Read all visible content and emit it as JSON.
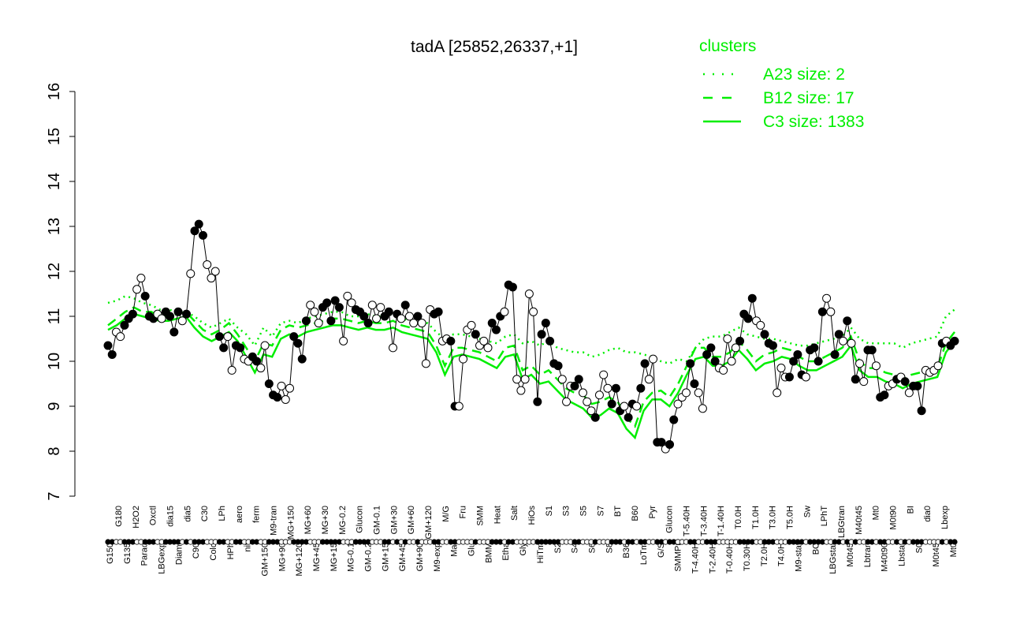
{
  "chart_data": {
    "type": "line",
    "title": "tadA [25852,26337,+1]",
    "ylim": [
      7,
      16
    ],
    "yticks": [
      "7",
      "8",
      "9",
      "10",
      "11",
      "12",
      "13",
      "14",
      "15",
      "16"
    ],
    "xlabels": [
      "G150",
      "G180",
      "G135",
      "H2O2",
      "Paraq",
      "Oxctl",
      "LBGexp",
      "dia15",
      "Diami",
      "dia5",
      "C90",
      "C30",
      "Cold",
      "LPh",
      "HPh",
      "aero",
      "nit",
      "ferm",
      "GM+150",
      "M9-tran",
      "MG+90",
      "MG+150",
      "MG+120",
      "MG+60",
      "MG+45",
      "MG+30",
      "MG+15",
      "MG-0.2",
      "MG-0.1",
      "Glucon",
      "GM-0.2",
      "GM-0.1",
      "GM+15",
      "GM+30",
      "GM+45",
      "GM+60",
      "GM+90",
      "GM+120",
      "M9-exp",
      "M/G",
      "Mal",
      "Fru",
      "Glu",
      "SMM",
      "BMM",
      "Heat",
      "Etha",
      "Salt",
      "Gly",
      "HiOs",
      "HiTm",
      "S1",
      "S2",
      "S3",
      "S4",
      "S5",
      "S6",
      "S7",
      "S8",
      "BT",
      "B36",
      "B60",
      "LoTm",
      "Pyr",
      "G/S",
      "Glucon",
      "SMMPr",
      "T-5.40H",
      "T-4.40H",
      "T-3.40H",
      "T-2.40H",
      "T-1.40H",
      "T-0.40H",
      "T0.0H",
      "T0.30H",
      "T1.0H",
      "T2.0H",
      "T3.0H",
      "T4.0H",
      "T5.0H",
      "M9-stat",
      "Sw",
      "BC",
      "LPhT",
      "LBGstat",
      "LBGtran",
      "M0t45",
      "M40t45",
      "Lbtran",
      "Mt0",
      "M40t90",
      "M0t90",
      "Lbstat",
      "BI",
      "S0",
      "dia0",
      "M0t45",
      "Lbexp",
      "Mt0"
    ],
    "legend": {
      "title": "clusters",
      "position": "top-right",
      "entries": [
        {
          "label": "A23 size: 2",
          "style": "dotted"
        },
        {
          "label": "B12 size: 17",
          "style": "dashed"
        },
        {
          "label": "C3 size: 1383",
          "style": "solid"
        }
      ]
    },
    "colors": {
      "cluster_lines": "#00ee00",
      "points_fill_open": "#ffffff",
      "points_fill_solid": "#000000"
    },
    "points": [
      [
        10.35,
        1
      ],
      [
        10.15,
        1
      ],
      [
        10.65,
        0
      ],
      [
        10.55,
        0
      ],
      [
        10.8,
        1
      ],
      [
        10.95,
        1
      ],
      [
        11.05,
        1
      ],
      [
        11.6,
        0
      ],
      [
        11.85,
        0
      ],
      [
        11.45,
        1
      ],
      [
        11.0,
        1
      ],
      [
        10.95,
        1
      ],
      [
        11.05,
        0
      ],
      [
        10.95,
        0
      ],
      [
        11.1,
        1
      ],
      [
        11.0,
        1
      ],
      [
        10.65,
        1
      ],
      [
        11.1,
        1
      ],
      [
        10.9,
        0
      ],
      [
        11.05,
        1
      ],
      [
        11.95,
        0
      ],
      [
        12.9,
        1
      ],
      [
        13.05,
        1
      ],
      [
        12.8,
        1
      ],
      [
        12.15,
        0
      ],
      [
        11.85,
        0
      ],
      [
        12.0,
        0
      ],
      [
        10.55,
        1
      ],
      [
        10.3,
        1
      ],
      [
        10.55,
        0
      ],
      [
        9.8,
        0
      ],
      [
        10.35,
        1
      ],
      [
        10.3,
        1
      ],
      [
        10.05,
        0
      ],
      [
        10.0,
        0
      ],
      [
        10.1,
        1
      ],
      [
        10.0,
        1
      ],
      [
        9.85,
        0
      ],
      [
        10.35,
        0
      ],
      [
        9.5,
        1
      ],
      [
        9.25,
        1
      ],
      [
        9.2,
        1
      ],
      [
        9.45,
        0
      ],
      [
        9.15,
        0
      ],
      [
        9.4,
        0
      ],
      [
        10.55,
        1
      ],
      [
        10.4,
        1
      ],
      [
        10.05,
        1
      ],
      [
        10.9,
        1
      ],
      [
        11.25,
        0
      ],
      [
        11.1,
        0
      ],
      [
        10.85,
        0
      ],
      [
        11.2,
        1
      ],
      [
        11.3,
        1
      ],
      [
        10.9,
        1
      ],
      [
        11.35,
        1
      ],
      [
        11.2,
        1
      ],
      [
        10.45,
        0
      ],
      [
        11.45,
        0
      ],
      [
        11.3,
        0
      ],
      [
        11.15,
        1
      ],
      [
        11.1,
        1
      ],
      [
        11.0,
        1
      ],
      [
        10.85,
        1
      ],
      [
        11.25,
        0
      ],
      [
        10.95,
        0
      ],
      [
        11.2,
        0
      ],
      [
        11.0,
        1
      ],
      [
        11.1,
        1
      ],
      [
        10.3,
        0
      ],
      [
        11.05,
        1
      ],
      [
        10.95,
        0
      ],
      [
        11.25,
        1
      ],
      [
        11.0,
        0
      ],
      [
        10.85,
        0
      ],
      [
        11.0,
        1
      ],
      [
        10.85,
        0
      ],
      [
        9.95,
        0
      ],
      [
        11.15,
        0
      ],
      [
        11.05,
        1
      ],
      [
        11.1,
        1
      ],
      [
        10.45,
        0
      ],
      [
        10.5,
        0
      ],
      [
        10.45,
        1
      ],
      [
        9.0,
        1
      ],
      [
        9.0,
        0
      ],
      [
        10.05,
        0
      ],
      [
        10.7,
        0
      ],
      [
        10.8,
        0
      ],
      [
        10.6,
        1
      ],
      [
        10.35,
        0
      ],
      [
        10.45,
        0
      ],
      [
        10.3,
        0
      ],
      [
        10.85,
        1
      ],
      [
        10.7,
        1
      ],
      [
        11.0,
        1
      ],
      [
        11.1,
        0
      ],
      [
        11.7,
        1
      ],
      [
        11.65,
        1
      ],
      [
        9.6,
        0
      ],
      [
        9.35,
        0
      ],
      [
        9.6,
        0
      ],
      [
        11.5,
        0
      ],
      [
        11.1,
        0
      ],
      [
        9.1,
        1
      ],
      [
        10.6,
        1
      ],
      [
        10.85,
        1
      ],
      [
        10.45,
        1
      ],
      [
        9.95,
        1
      ],
      [
        9.9,
        1
      ],
      [
        9.6,
        0
      ],
      [
        9.1,
        0
      ],
      [
        9.45,
        0
      ],
      [
        9.45,
        1
      ],
      [
        9.6,
        1
      ],
      [
        9.3,
        0
      ],
      [
        9.1,
        0
      ],
      [
        8.9,
        0
      ],
      [
        8.75,
        1
      ],
      [
        9.25,
        0
      ],
      [
        9.7,
        0
      ],
      [
        9.4,
        0
      ],
      [
        9.05,
        1
      ],
      [
        9.4,
        1
      ],
      [
        8.9,
        1
      ],
      [
        9.0,
        0
      ],
      [
        8.75,
        1
      ],
      [
        9.05,
        1
      ],
      [
        9.0,
        0
      ],
      [
        9.4,
        1
      ],
      [
        9.95,
        1
      ],
      [
        9.6,
        0
      ],
      [
        10.05,
        0
      ],
      [
        8.2,
        1
      ],
      [
        8.2,
        1
      ],
      [
        8.05,
        0
      ],
      [
        8.15,
        1
      ],
      [
        8.7,
        1
      ],
      [
        9.05,
        0
      ],
      [
        9.2,
        0
      ],
      [
        9.3,
        0
      ],
      [
        9.95,
        1
      ],
      [
        9.5,
        1
      ],
      [
        9.3,
        0
      ],
      [
        8.95,
        0
      ],
      [
        10.15,
        1
      ],
      [
        10.3,
        1
      ],
      [
        10.0,
        1
      ],
      [
        9.85,
        0
      ],
      [
        9.8,
        0
      ],
      [
        10.5,
        0
      ],
      [
        10.0,
        0
      ],
      [
        10.3,
        0
      ],
      [
        10.45,
        1
      ],
      [
        11.05,
        1
      ],
      [
        10.95,
        1
      ],
      [
        11.4,
        1
      ],
      [
        10.9,
        0
      ],
      [
        10.8,
        0
      ],
      [
        10.6,
        1
      ],
      [
        10.4,
        1
      ],
      [
        10.35,
        1
      ],
      [
        9.3,
        0
      ],
      [
        9.85,
        0
      ],
      [
        9.65,
        0
      ],
      [
        9.65,
        1
      ],
      [
        10.0,
        1
      ],
      [
        10.15,
        1
      ],
      [
        9.7,
        1
      ],
      [
        9.65,
        0
      ],
      [
        10.25,
        1
      ],
      [
        10.3,
        1
      ],
      [
        10.0,
        1
      ],
      [
        11.1,
        1
      ],
      [
        11.4,
        0
      ],
      [
        11.1,
        0
      ],
      [
        10.15,
        1
      ],
      [
        10.6,
        1
      ],
      [
        10.45,
        0
      ],
      [
        10.9,
        1
      ],
      [
        10.4,
        0
      ],
      [
        9.6,
        1
      ],
      [
        9.95,
        0
      ],
      [
        9.55,
        0
      ],
      [
        10.25,
        1
      ],
      [
        10.25,
        1
      ],
      [
        9.9,
        0
      ],
      [
        9.2,
        1
      ],
      [
        9.25,
        1
      ],
      [
        9.45,
        0
      ],
      [
        9.5,
        0
      ],
      [
        9.6,
        1
      ],
      [
        9.65,
        0
      ],
      [
        9.55,
        1
      ],
      [
        9.3,
        0
      ],
      [
        9.45,
        1
      ],
      [
        9.45,
        1
      ],
      [
        8.9,
        1
      ],
      [
        9.8,
        0
      ],
      [
        9.75,
        0
      ],
      [
        9.8,
        0
      ],
      [
        9.9,
        0
      ],
      [
        10.4,
        1
      ],
      [
        10.45,
        0
      ],
      [
        10.35,
        1
      ],
      [
        10.45,
        1
      ]
    ],
    "series": [
      {
        "values": [
          11.3,
          11.35,
          11.45,
          11.4,
          11.3,
          11.25,
          11.15,
          11.15,
          11.1,
          11.1,
          11.0,
          10.85,
          10.75,
          10.85,
          10.95,
          10.75,
          10.6,
          10.35,
          10.75,
          10.55,
          10.85,
          10.9,
          10.85,
          10.95,
          11.0,
          11.05,
          11.1,
          11.1,
          11.0,
          11.0,
          11.05,
          11.0,
          11.0,
          11.05,
          10.95,
          10.9,
          10.85,
          10.85,
          10.65,
          10.5,
          10.6,
          10.6,
          10.55,
          10.5,
          10.45,
          10.4,
          10.55,
          10.6,
          10.4,
          10.45,
          10.35,
          10.45,
          10.3,
          10.25,
          10.2,
          10.2,
          10.1,
          10.15,
          10.25,
          10.3,
          10.2,
          10.2,
          10.15,
          10.1,
          10.0,
          9.95,
          10.05,
          10.0,
          10.3,
          10.5,
          10.55,
          10.55,
          10.65,
          10.75,
          10.6,
          10.55,
          10.5,
          10.5,
          10.45,
          10.4,
          10.35,
          10.35,
          10.4,
          10.45,
          10.5,
          10.55,
          10.75,
          10.5,
          10.4,
          10.4,
          10.4,
          10.4,
          10.3,
          10.4,
          10.45,
          10.5,
          10.55,
          11.0,
          11.15
        ]
      },
      {
        "values": [
          10.8,
          10.95,
          11.1,
          11.2,
          11.1,
          11.1,
          11.0,
          11.0,
          11.05,
          11.1,
          10.9,
          10.7,
          10.6,
          10.7,
          10.85,
          10.6,
          10.3,
          10.0,
          10.4,
          10.35,
          10.7,
          10.8,
          10.75,
          10.8,
          10.85,
          10.9,
          10.95,
          10.95,
          10.9,
          10.85,
          10.9,
          10.85,
          10.85,
          10.9,
          10.8,
          10.75,
          10.7,
          10.65,
          10.35,
          9.9,
          10.3,
          10.3,
          10.25,
          10.2,
          10.1,
          10.0,
          10.3,
          10.35,
          9.8,
          9.9,
          9.7,
          9.8,
          9.6,
          9.4,
          9.3,
          9.25,
          9.05,
          9.1,
          9.2,
          9.1,
          8.75,
          8.55,
          9.1,
          9.3,
          9.35,
          9.2,
          9.5,
          9.9,
          10.3,
          10.3,
          10.1,
          10.1,
          10.2,
          10.45,
          10.25,
          10.0,
          10.15,
          10.2,
          10.3,
          10.25,
          10.1,
          10.0,
          10.0,
          10.1,
          10.2,
          10.3,
          10.55,
          10.0,
          9.85,
          9.85,
          9.75,
          9.7,
          9.6,
          9.7,
          9.75,
          9.8,
          9.85,
          10.4,
          10.65
        ]
      },
      {
        "values": [
          10.7,
          10.8,
          10.95,
          11.05,
          11.0,
          10.95,
          10.9,
          10.9,
          10.95,
          11.0,
          10.75,
          10.55,
          10.45,
          10.55,
          10.65,
          10.45,
          10.1,
          9.75,
          10.15,
          10.1,
          10.5,
          10.6,
          10.55,
          10.65,
          10.7,
          10.75,
          10.8,
          10.8,
          10.75,
          10.7,
          10.75,
          10.7,
          10.7,
          10.75,
          10.65,
          10.6,
          10.55,
          10.5,
          10.2,
          9.7,
          10.1,
          10.15,
          10.1,
          10.05,
          9.95,
          9.85,
          10.1,
          10.15,
          9.6,
          9.7,
          9.5,
          9.55,
          9.35,
          9.15,
          9.05,
          8.95,
          8.75,
          8.8,
          8.95,
          8.85,
          8.5,
          8.3,
          8.9,
          9.15,
          9.15,
          9.0,
          9.3,
          9.7,
          10.05,
          10.1,
          9.9,
          9.9,
          10.0,
          10.25,
          10.05,
          9.8,
          9.95,
          10.0,
          10.1,
          10.05,
          9.9,
          9.8,
          9.8,
          9.9,
          10.0,
          10.1,
          10.35,
          9.8,
          9.65,
          9.65,
          9.55,
          9.5,
          9.4,
          9.5,
          9.55,
          9.6,
          9.65,
          10.2,
          10.45
        ]
      }
    ]
  }
}
